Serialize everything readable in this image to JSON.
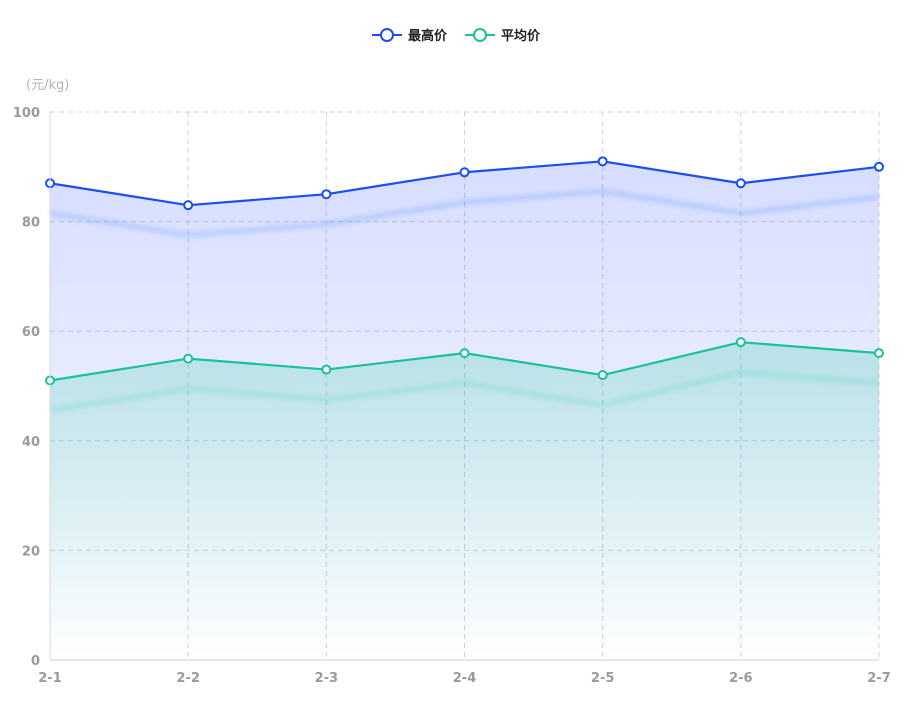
{
  "chart_data": {
    "type": "line",
    "ylabel": "(元/kg)",
    "categories": [
      "2-1",
      "2-2",
      "2-3",
      "2-4",
      "2-5",
      "2-6",
      "2-7"
    ],
    "ylim": [
      0,
      100
    ],
    "yticks": [
      0,
      20,
      40,
      60,
      80,
      100
    ],
    "grid": true,
    "area_fill": true,
    "legend_position": "top-center",
    "series": [
      {
        "name": "最高价",
        "color": "#1a4ef0",
        "values": [
          87,
          83,
          85,
          89,
          91,
          87,
          90
        ]
      },
      {
        "name": "平均价",
        "color": "#19c396",
        "values": [
          51,
          55,
          53,
          56,
          52,
          58,
          56
        ]
      }
    ]
  }
}
